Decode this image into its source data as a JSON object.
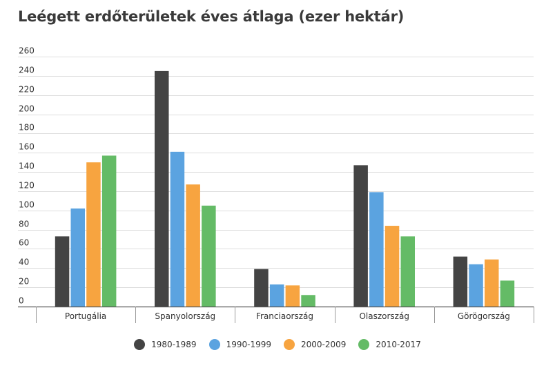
{
  "chart_data": {
    "type": "bar",
    "title": "Leégett erdőterületek éves átlaga (ezer hektár)",
    "xlabel": "",
    "ylabel": "",
    "ylim": [
      0,
      260
    ],
    "yticks": [
      0,
      20,
      40,
      60,
      80,
      100,
      120,
      140,
      160,
      180,
      200,
      220,
      240,
      260
    ],
    "grid": true,
    "legend_position": "bottom",
    "categories": [
      "Portugália",
      "Spanyolország",
      "Franciaország",
      "Olaszország",
      "Görögország"
    ],
    "series": [
      {
        "name": "1980-1989",
        "color": "#444444",
        "values": [
          73,
          245,
          39,
          147,
          52
        ]
      },
      {
        "name": "1990-1999",
        "color": "#5ba3e0",
        "values": [
          102,
          161,
          23,
          119,
          44
        ]
      },
      {
        "name": "2000-2009",
        "color": "#f7a440",
        "values": [
          150,
          127,
          22,
          84,
          49
        ]
      },
      {
        "name": "2010-2017",
        "color": "#64bb66",
        "values": [
          157,
          105,
          12,
          73,
          27
        ]
      }
    ]
  }
}
